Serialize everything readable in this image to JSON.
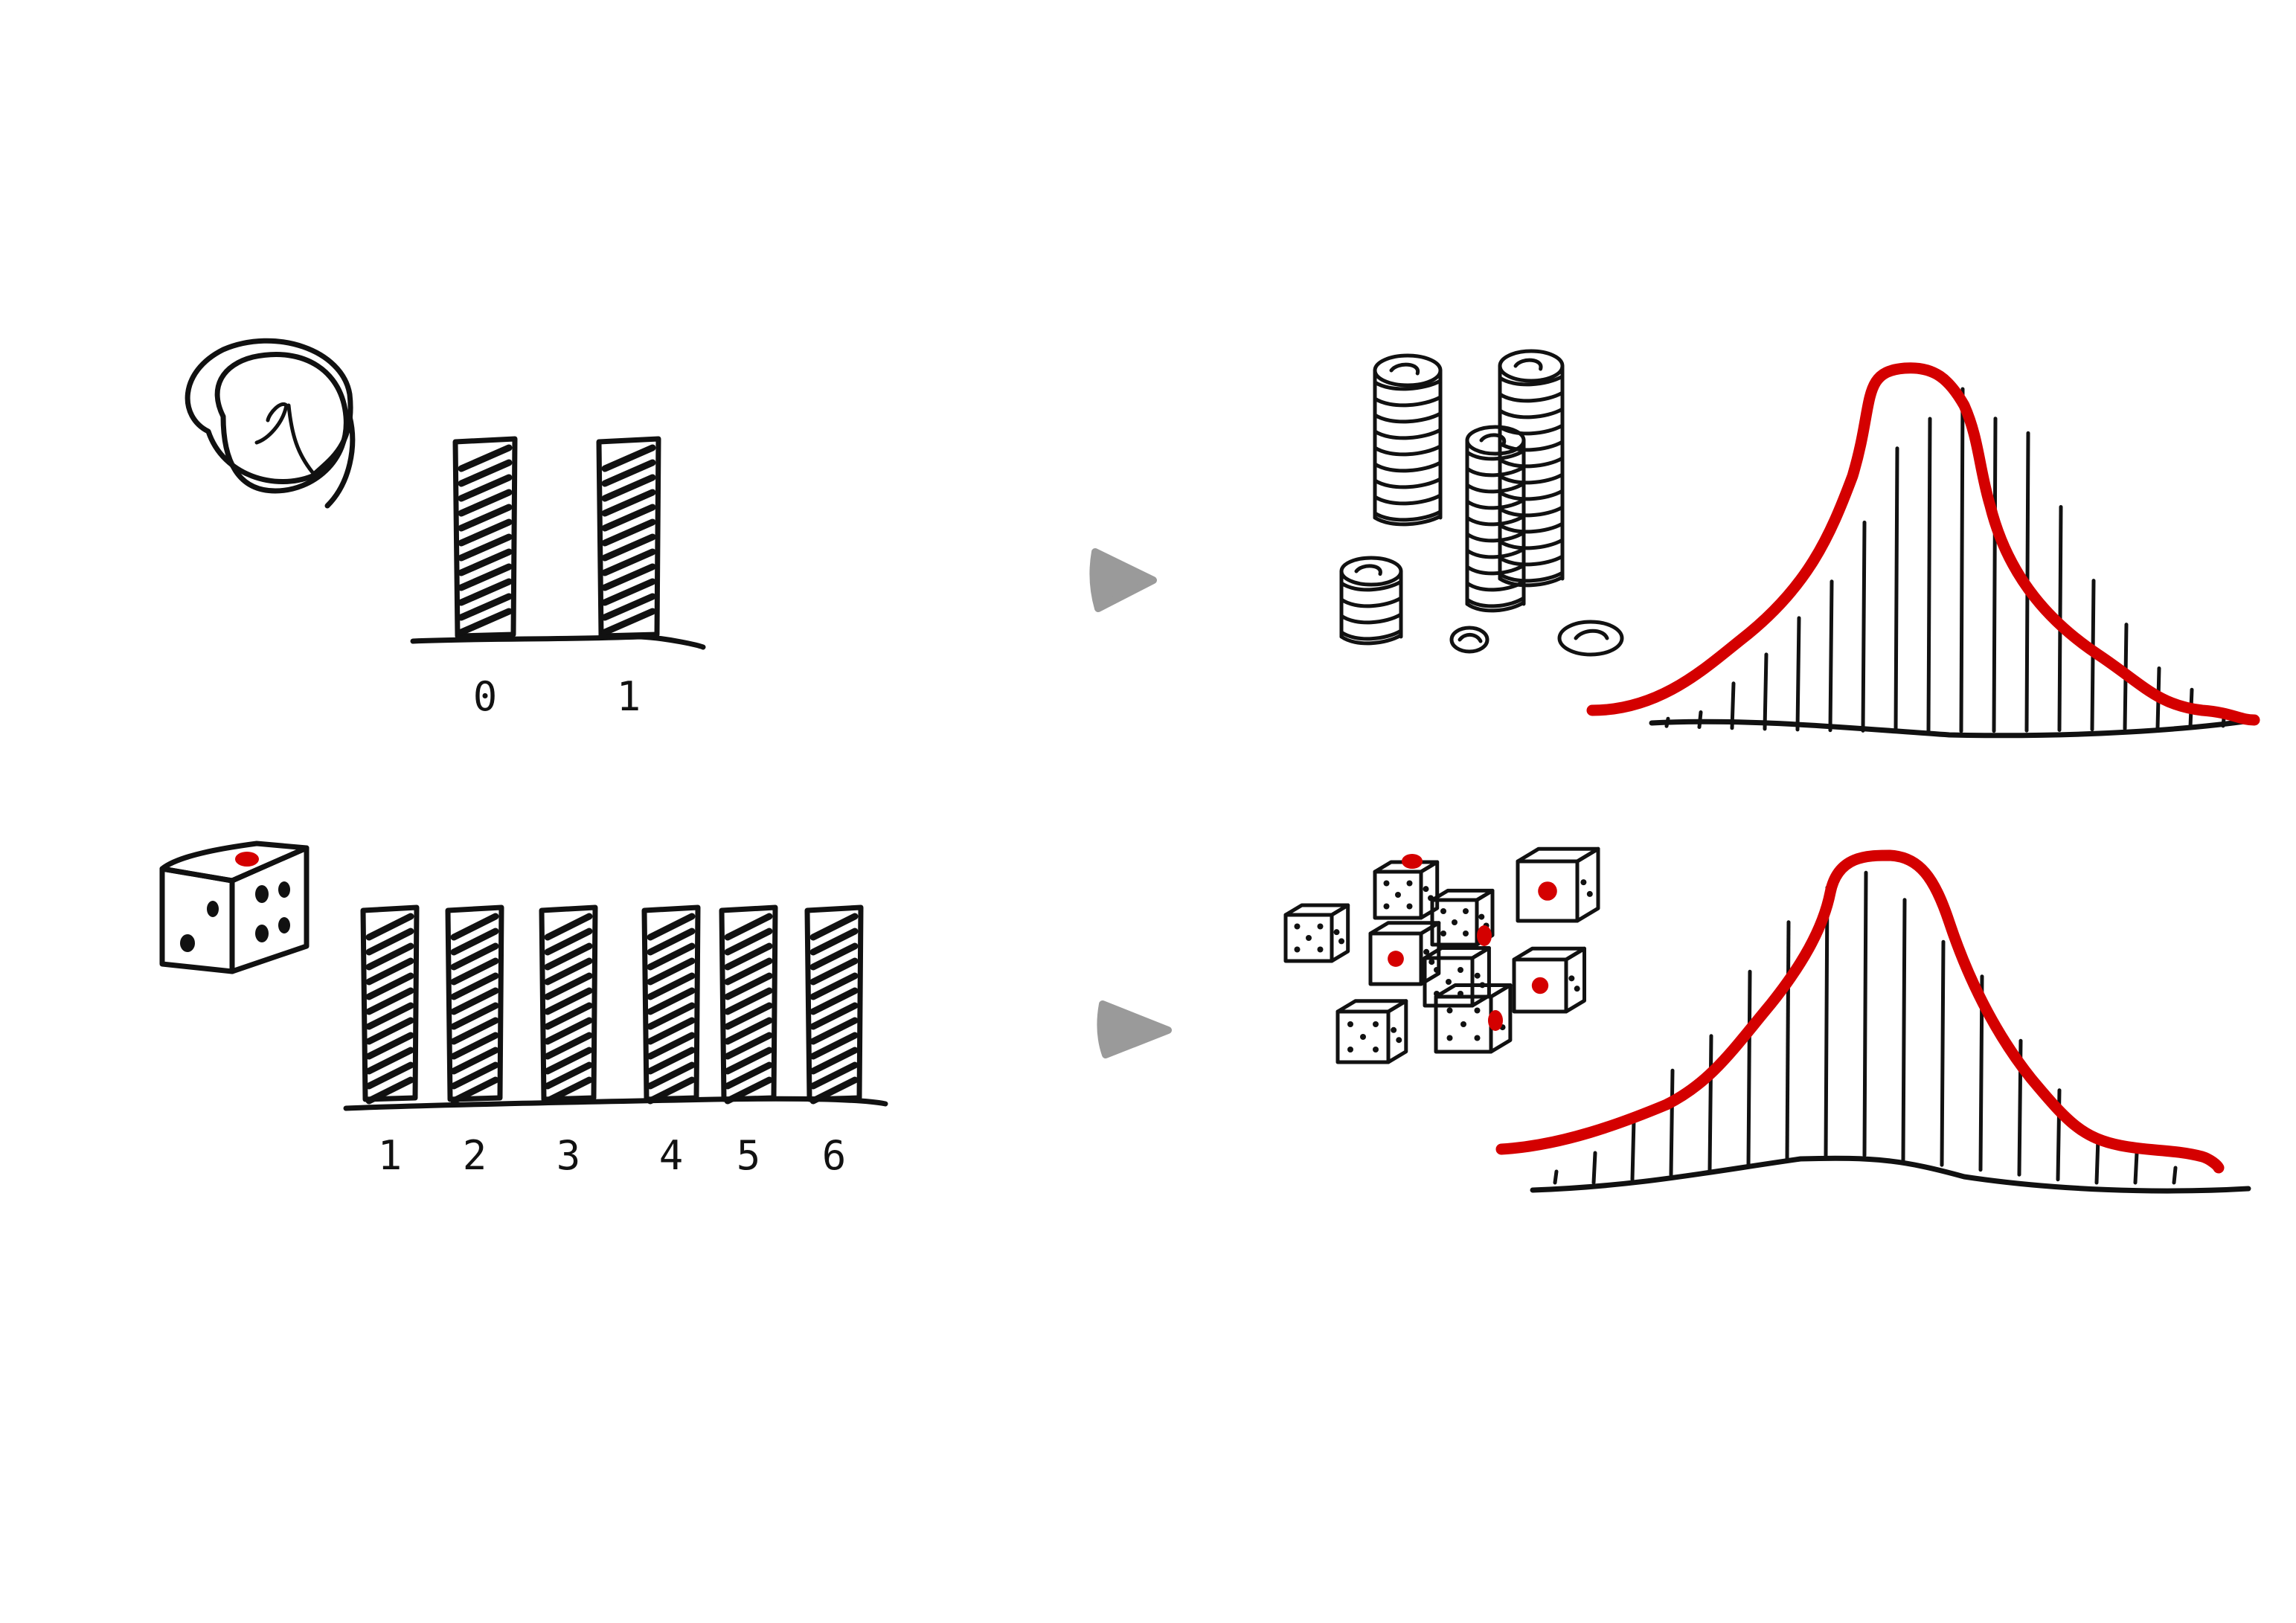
{
  "colors": {
    "ink": "#111111",
    "accent_red": "#d40000",
    "arrow_gray": "#9a9a9a",
    "background": "#ffffff"
  },
  "coin_row": {
    "icon": "coin-icon",
    "chart_data": {
      "type": "bar",
      "categories": [
        "0",
        "1"
      ],
      "values": [
        1,
        1
      ]
    },
    "arrow_icon": "arrow-right-icon",
    "result_icon": "coin-stacks-icon",
    "result_chart": {
      "type": "bar",
      "overlay": "normal-curve"
    }
  },
  "dice_row": {
    "icon": "die-icon",
    "chart_data": {
      "type": "bar",
      "categories": [
        "1",
        "2",
        "3",
        "4",
        "5",
        "6"
      ],
      "values": [
        1,
        1,
        1,
        1,
        1,
        1
      ]
    },
    "arrow_icon": "arrow-right-icon",
    "result_icon": "many-dice-icon",
    "result_chart": {
      "type": "bar",
      "overlay": "normal-curve"
    }
  }
}
